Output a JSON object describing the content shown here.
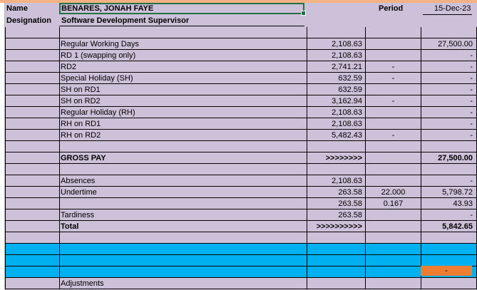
{
  "header": {
    "name_label": "Name",
    "designation_label": "Designation",
    "employee_name": "BENARES, JONAH FAYE",
    "designation": "Software Development Supervisor",
    "period_label": "Period",
    "period_value": "15-Dec-23"
  },
  "earnings": [
    {
      "label": "Regular Working Days",
      "rate": "2,108.63",
      "qty": "",
      "amount": "27,500.00"
    },
    {
      "label": "RD 1 (swapping only)",
      "rate": "2,108.63",
      "qty": "",
      "amount": "-"
    },
    {
      "label": "RD2",
      "rate": "2,741.21",
      "qty": "-",
      "amount": "-"
    },
    {
      "label": "Special Holiday (SH)",
      "rate": "632.59",
      "qty": "-",
      "amount": "-"
    },
    {
      "label": "SH on RD1",
      "rate": "632.59",
      "qty": "",
      "amount": "-"
    },
    {
      "label": "SH on RD2",
      "rate": "3,162.94",
      "qty": "-",
      "amount": "-"
    },
    {
      "label": "Regular Holiday (RH)",
      "rate": "2,108.63",
      "qty": "",
      "amount": "-"
    },
    {
      "label": "RH on RD1",
      "rate": "2,108.63",
      "qty": "",
      "amount": "-"
    },
    {
      "label": "RH on RD2",
      "rate": "5,482.43",
      "qty": "-",
      "amount": "-"
    }
  ],
  "gross": {
    "label": "GROSS PAY",
    "arrow": ">>>>>>>>",
    "amount": "27,500.00"
  },
  "deductions": [
    {
      "label": "Absences",
      "rate": "2,108.63",
      "qty": "",
      "amount": "-"
    },
    {
      "label": "Undertime",
      "rate": "263.58",
      "qty": "22.000",
      "amount": "5,798.72"
    },
    {
      "label": "",
      "rate": "263.58",
      "qty": "0.167",
      "amount": "43.93"
    },
    {
      "label": "Tardiness",
      "rate": "263.58",
      "qty": "",
      "amount": "-"
    }
  ],
  "total": {
    "label": "Total",
    "arrow": ">>>>>>>>>>",
    "amount": "5,842.65"
  },
  "adjustments": {
    "label": "Adjustments",
    "orange_value": "-"
  }
}
